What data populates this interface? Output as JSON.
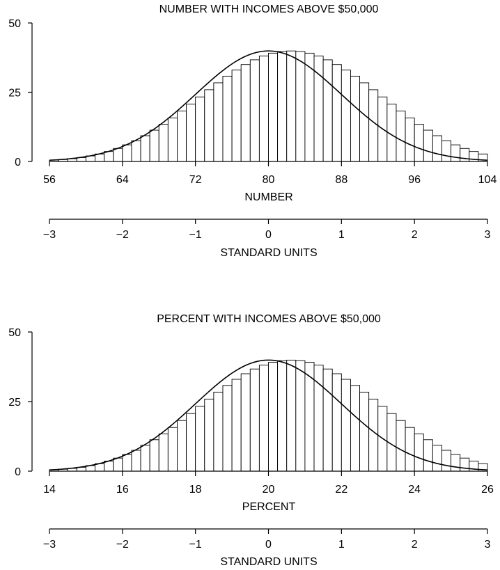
{
  "chart_data": [
    {
      "type": "bar",
      "title": "NUMBER WITH INCOMES ABOVE $50,000",
      "xlabel": "NUMBER",
      "ylabel": "",
      "xlim": [
        56,
        104
      ],
      "ylim": [
        0,
        50
      ],
      "x_ticks": [
        "56",
        "64",
        "72",
        "80",
        "88",
        "96",
        "104"
      ],
      "y_ticks": [
        "0",
        "25",
        "50"
      ],
      "bin_width": 1,
      "bin_starts": [
        56,
        57,
        58,
        59,
        60,
        61,
        62,
        63,
        64,
        65,
        66,
        67,
        68,
        69,
        70,
        71,
        72,
        73,
        74,
        75,
        76,
        77,
        78,
        79,
        80,
        81,
        82,
        83,
        84,
        85,
        86,
        87,
        88,
        89,
        90,
        91,
        92,
        93,
        94,
        95,
        96,
        97,
        98,
        99,
        100,
        101,
        102,
        103
      ],
      "values": [
        0.5,
        0.7,
        1.0,
        1.4,
        2.0,
        2.7,
        3.6,
        4.7,
        6.0,
        7.5,
        9.3,
        11.3,
        13.4,
        15.7,
        18.2,
        20.7,
        23.3,
        25.9,
        28.4,
        30.8,
        33.0,
        35.0,
        36.7,
        38.1,
        39.1,
        39.7,
        39.9,
        39.7,
        39.1,
        38.1,
        36.7,
        35.0,
        33.0,
        30.8,
        28.4,
        25.9,
        23.3,
        20.7,
        18.2,
        15.7,
        13.4,
        11.3,
        9.3,
        7.5,
        6.0,
        4.7,
        3.6,
        2.7
      ],
      "normal_curve": true,
      "secondary_axis": {
        "label": "STANDARD UNITS",
        "ticks": [
          "−3",
          "−2",
          "−1",
          "0",
          "1",
          "2",
          "3"
        ]
      }
    },
    {
      "type": "bar",
      "title": "PERCENT WITH INCOMES ABOVE $50,000",
      "xlabel": "PERCENT",
      "ylabel": "",
      "xlim": [
        14,
        26
      ],
      "ylim": [
        0,
        50
      ],
      "x_ticks": [
        "14",
        "16",
        "18",
        "20",
        "22",
        "24",
        "26"
      ],
      "y_ticks": [
        "0",
        "25",
        "50"
      ],
      "bin_width": 0.25,
      "bin_starts": [
        14,
        14.25,
        14.5,
        14.75,
        15,
        15.25,
        15.5,
        15.75,
        16,
        16.25,
        16.5,
        16.75,
        17,
        17.25,
        17.5,
        17.75,
        18,
        18.25,
        18.5,
        18.75,
        19,
        19.25,
        19.5,
        19.75,
        20,
        20.25,
        20.5,
        20.75,
        21,
        21.25,
        21.5,
        21.75,
        22,
        22.25,
        22.5,
        22.75,
        23,
        23.25,
        23.5,
        23.75,
        24,
        24.25,
        24.5,
        24.75,
        25,
        25.25,
        25.5,
        25.75
      ],
      "values": [
        0.5,
        0.7,
        1.0,
        1.4,
        2.0,
        2.7,
        3.6,
        4.7,
        6.0,
        7.5,
        9.3,
        11.3,
        13.4,
        15.7,
        18.2,
        20.7,
        23.3,
        25.9,
        28.4,
        30.8,
        33.0,
        35.0,
        36.7,
        38.1,
        39.1,
        39.7,
        39.9,
        39.7,
        39.1,
        38.1,
        36.7,
        35.0,
        33.0,
        30.8,
        28.4,
        25.9,
        23.3,
        20.7,
        18.2,
        15.7,
        13.4,
        11.3,
        9.3,
        7.5,
        6.0,
        4.7,
        3.6,
        2.7
      ],
      "normal_curve": true,
      "secondary_axis": {
        "label": "STANDARD UNITS",
        "ticks": [
          "−3",
          "−2",
          "−1",
          "0",
          "1",
          "2",
          "3"
        ]
      }
    }
  ]
}
